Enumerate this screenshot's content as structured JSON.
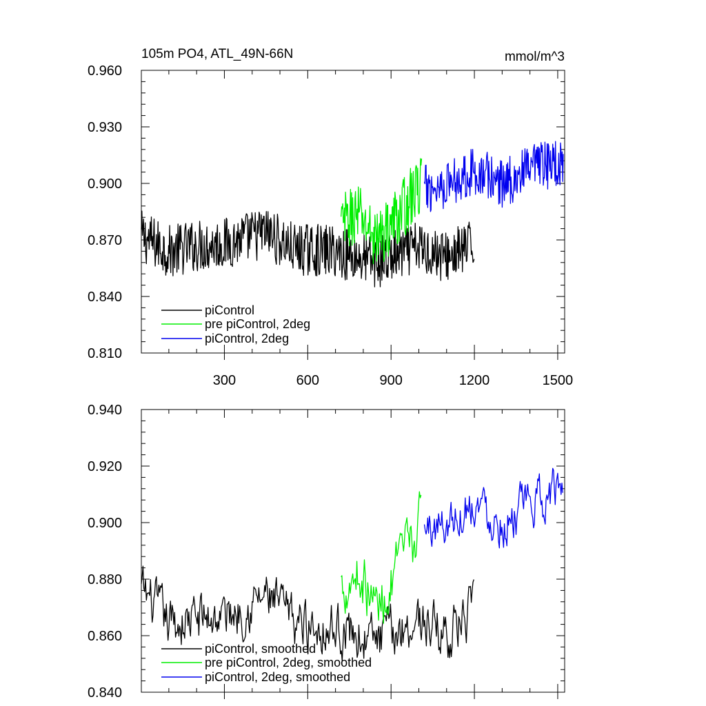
{
  "chart_data": [
    {
      "type": "line",
      "title_left": "105m PO4, ATL_49N-66N",
      "title_right": "mmol/m^3",
      "xlabel": "",
      "ylabel": "",
      "xlim": [
        1,
        1525
      ],
      "ylim": [
        0.81,
        0.96
      ],
      "x_ticks": [
        300,
        600,
        900,
        1200,
        1500
      ],
      "x_tick_labels": [
        "300",
        "600",
        "900",
        "1200",
        "1500"
      ],
      "y_ticks": [
        0.81,
        0.84,
        0.87,
        0.9,
        0.93,
        0.96
      ],
      "y_tick_labels": [
        "0.810",
        "0.840",
        "0.870",
        "0.900",
        "0.930",
        "0.960"
      ],
      "legend": [
        "piControl",
        "pre piControl, 2deg",
        "piControl, 2deg"
      ],
      "legend_position": "bottom-left",
      "series": [
        {
          "name": "piControl",
          "color": "#000000",
          "x_start": 1,
          "x_end": 1200,
          "noise": 0.014,
          "anchors_x": [
            1,
            100,
            200,
            300,
            450,
            550,
            700,
            850,
            1000,
            1100,
            1200
          ],
          "anchors_y": [
            0.872,
            0.864,
            0.867,
            0.868,
            0.874,
            0.865,
            0.864,
            0.858,
            0.866,
            0.861,
            0.867
          ]
        },
        {
          "name": "pre piControl, 2deg",
          "color": "#00ee00",
          "x_start": 720,
          "x_end": 1010,
          "noise": 0.016,
          "anchors_x": [
            720,
            780,
            850,
            920,
            1010
          ],
          "anchors_y": [
            0.878,
            0.884,
            0.87,
            0.882,
            0.9
          ]
        },
        {
          "name": "piControl, 2deg",
          "color": "#0000ee",
          "x_start": 1020,
          "x_end": 1520,
          "noise": 0.013,
          "anchors_x": [
            1020,
            1100,
            1200,
            1300,
            1400,
            1520
          ],
          "anchors_y": [
            0.897,
            0.9,
            0.907,
            0.9,
            0.907,
            0.912
          ]
        }
      ]
    },
    {
      "type": "line",
      "xlabel": "",
      "ylabel": "",
      "xlim": [
        1,
        1525
      ],
      "ylim": [
        0.84,
        0.94
      ],
      "x_ticks": [
        300,
        600,
        900,
        1200,
        1500
      ],
      "y_ticks": [
        0.84,
        0.86,
        0.88,
        0.9,
        0.92,
        0.94
      ],
      "y_tick_labels": [
        "0.840",
        "0.860",
        "0.880",
        "0.900",
        "0.920",
        "0.940"
      ],
      "legend": [
        "piControl, smoothed",
        "pre piControl, 2deg, smoothed",
        "piControl, 2deg, smoothed"
      ],
      "legend_position": "bottom-left",
      "series": [
        {
          "name": "piControl, smoothed",
          "color": "#000000",
          "x_start": 1,
          "x_end": 1200,
          "noise": 0.009,
          "anchors_x": [
            1,
            100,
            200,
            300,
            450,
            550,
            700,
            850,
            1000,
            1100,
            1200
          ],
          "anchors_y": [
            0.876,
            0.864,
            0.866,
            0.867,
            0.874,
            0.865,
            0.863,
            0.858,
            0.866,
            0.861,
            0.868
          ]
        },
        {
          "name": "pre piControl, 2deg, smoothed",
          "color": "#00ee00",
          "x_start": 720,
          "x_end": 1010,
          "noise": 0.01,
          "anchors_x": [
            720,
            780,
            850,
            920,
            1010
          ],
          "anchors_y": [
            0.878,
            0.883,
            0.87,
            0.882,
            0.9
          ]
        },
        {
          "name": "piControl, 2deg, smoothed",
          "color": "#0000ee",
          "x_start": 1020,
          "x_end": 1520,
          "noise": 0.008,
          "anchors_x": [
            1020,
            1100,
            1200,
            1300,
            1400,
            1520
          ],
          "anchors_y": [
            0.897,
            0.9,
            0.908,
            0.9,
            0.906,
            0.913
          ]
        }
      ]
    }
  ]
}
